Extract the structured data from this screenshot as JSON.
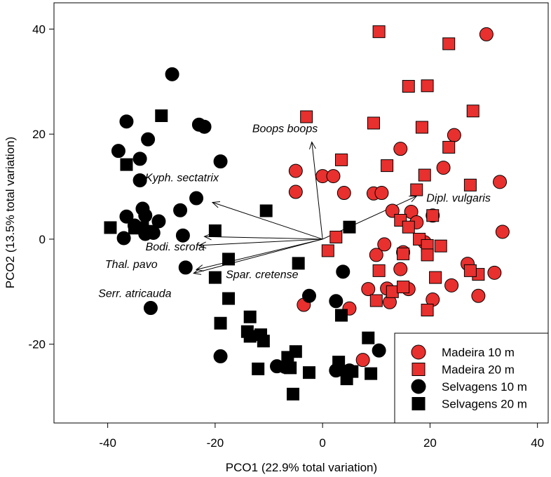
{
  "chart_data": {
    "type": "scatter",
    "xlabel": "PCO1 (22.9% total variation)",
    "ylabel": "PCO2 (13.5% total variation)",
    "xlim": [
      -50,
      42
    ],
    "ylim": [
      -35,
      45
    ],
    "xticks": [
      -40,
      -20,
      0,
      20,
      40
    ],
    "yticks": [
      -20,
      0,
      20,
      40
    ],
    "grid": false,
    "legend_position": "bottom-right",
    "colors": {
      "red": "#e8302e",
      "black": "#000000"
    },
    "series": [
      {
        "name": "Madeira 10 m",
        "marker": "circle",
        "color": "#e8302e",
        "points": [
          [
            30.5,
            39
          ],
          [
            24.5,
            19.8
          ],
          [
            14.5,
            17.2
          ],
          [
            22.5,
            13.6
          ],
          [
            33,
            10.9
          ],
          [
            -5,
            13
          ],
          [
            -5,
            9
          ],
          [
            0,
            12
          ],
          [
            2,
            12
          ],
          [
            4,
            8.8
          ],
          [
            9.5,
            8.7
          ],
          [
            11,
            8.8
          ],
          [
            13,
            5.4
          ],
          [
            16.5,
            5.2
          ],
          [
            20.5,
            4.5
          ],
          [
            33.5,
            1.4
          ],
          [
            17.5,
            3.2
          ],
          [
            11.5,
            -1
          ],
          [
            10,
            -3
          ],
          [
            15,
            -2.5
          ],
          [
            19,
            -0.6
          ],
          [
            27,
            -4.7
          ],
          [
            32,
            -6.4
          ],
          [
            14.5,
            -5.7
          ],
          [
            8.5,
            -9.5
          ],
          [
            12,
            -9.4
          ],
          [
            16,
            -9.5
          ],
          [
            24,
            -8.8
          ],
          [
            29,
            -10.8
          ],
          [
            20.5,
            -11.5
          ],
          [
            12.5,
            -12
          ],
          [
            -3.5,
            -12.5
          ],
          [
            5,
            -13.2
          ],
          [
            7.5,
            -23
          ]
        ]
      },
      {
        "name": "Madeira 20 m",
        "marker": "square",
        "color": "#e8302e",
        "points": [
          [
            10.5,
            39.5
          ],
          [
            23.5,
            37.2
          ],
          [
            16,
            29.1
          ],
          [
            19.5,
            29.2
          ],
          [
            28,
            24.4
          ],
          [
            -3,
            23.3
          ],
          [
            9.5,
            22.1
          ],
          [
            18.5,
            21.3
          ],
          [
            23.5,
            17.5
          ],
          [
            3.5,
            15.1
          ],
          [
            12,
            14
          ],
          [
            19,
            12.2
          ],
          [
            27.5,
            10.3
          ],
          [
            17.5,
            9.4
          ],
          [
            20.5,
            4.5
          ],
          [
            14.5,
            3.6
          ],
          [
            16,
            2.3
          ],
          [
            2.5,
            0.4
          ],
          [
            1,
            -2.2
          ],
          [
            18,
            0
          ],
          [
            19.5,
            -1.2
          ],
          [
            22,
            -1.3
          ],
          [
            15,
            -2.8
          ],
          [
            19.5,
            -3
          ],
          [
            10.5,
            -6
          ],
          [
            21,
            -7.3
          ],
          [
            29,
            -6.7
          ],
          [
            27.5,
            -6
          ],
          [
            13,
            -10
          ],
          [
            15,
            -9.1
          ],
          [
            10,
            -11.7
          ],
          [
            19.5,
            -13.5
          ]
        ]
      },
      {
        "name": "Selvagens 10 m",
        "marker": "circle",
        "color": "#000000",
        "points": [
          [
            -28,
            31.4
          ],
          [
            -23,
            21.8
          ],
          [
            -22,
            21.4
          ],
          [
            -36.5,
            22.4
          ],
          [
            -32.5,
            19
          ],
          [
            -38,
            16.8
          ],
          [
            -34,
            15.3
          ],
          [
            -19,
            14.8
          ],
          [
            -34,
            11.2
          ],
          [
            -23.5,
            7.8
          ],
          [
            -36.5,
            4.3
          ],
          [
            -33.5,
            5.8
          ],
          [
            -33,
            4.5
          ],
          [
            -26.5,
            5.5
          ],
          [
            -30.5,
            3.4
          ],
          [
            -35,
            2.6
          ],
          [
            -31.5,
            1.2
          ],
          [
            -33,
            1
          ],
          [
            -37,
            0.2
          ],
          [
            -26,
            0.7
          ],
          [
            -25.5,
            -5.4
          ],
          [
            3.8,
            -6.2
          ],
          [
            -2.5,
            -10.8
          ],
          [
            2.5,
            -11.8
          ],
          [
            -32,
            -13.1
          ],
          [
            -19,
            -22.3
          ],
          [
            10.5,
            -21.2
          ],
          [
            -8.5,
            -24.2
          ],
          [
            -7,
            -24.3
          ],
          [
            3,
            -24.8
          ],
          [
            5,
            -25
          ],
          [
            2.5,
            -25
          ]
        ]
      },
      {
        "name": "Selvagens 20 m",
        "marker": "square",
        "color": "#000000",
        "points": [
          [
            -30,
            23.5
          ],
          [
            -36.5,
            14.2
          ],
          [
            -10.5,
            5.4
          ],
          [
            -39.5,
            2.2
          ],
          [
            -35,
            2.1
          ],
          [
            -33.5,
            2.2
          ],
          [
            -32.5,
            1.5
          ],
          [
            -20,
            1.6
          ],
          [
            5,
            2.3
          ],
          [
            -17.5,
            -3.8
          ],
          [
            -4.5,
            -4.6
          ],
          [
            -20,
            -7.3
          ],
          [
            -17.5,
            -11.3
          ],
          [
            3.5,
            -14.5
          ],
          [
            -13.5,
            -14.8
          ],
          [
            -19,
            -16
          ],
          [
            -14,
            -17.6
          ],
          [
            -13.5,
            -18.5
          ],
          [
            -11.5,
            -18.2
          ],
          [
            -11,
            -19.4
          ],
          [
            8.5,
            -18.8
          ],
          [
            -5,
            -21.4
          ],
          [
            -6.5,
            -22.5
          ],
          [
            3,
            -23.4
          ],
          [
            -12,
            -24.7
          ],
          [
            -6,
            -24.5
          ],
          [
            -2.5,
            -25.4
          ],
          [
            5.5,
            -25.2
          ],
          [
            9,
            -25.6
          ],
          [
            4.5,
            -26.6
          ],
          [
            -5.5,
            -29.5
          ]
        ]
      }
    ],
    "vectors": [
      {
        "label": "Boops boops",
        "x": -2,
        "y": 18.5
      },
      {
        "label": "Kyph. sectatrix",
        "x": -20.5,
        "y": 7
      },
      {
        "label": "Dipl. vulgaris",
        "x": 17.5,
        "y": 8.2
      },
      {
        "label": "Bodi. scrofa",
        "x": -22,
        "y": 0.5
      },
      {
        "label": "Thal. pavo",
        "x": -23,
        "y": -1.2
      },
      {
        "label": "Spar. cretense",
        "x": -23.5,
        "y": -5.8
      },
      {
        "label": "Serr. atricauda",
        "x": -24,
        "y": -6.5
      }
    ]
  }
}
